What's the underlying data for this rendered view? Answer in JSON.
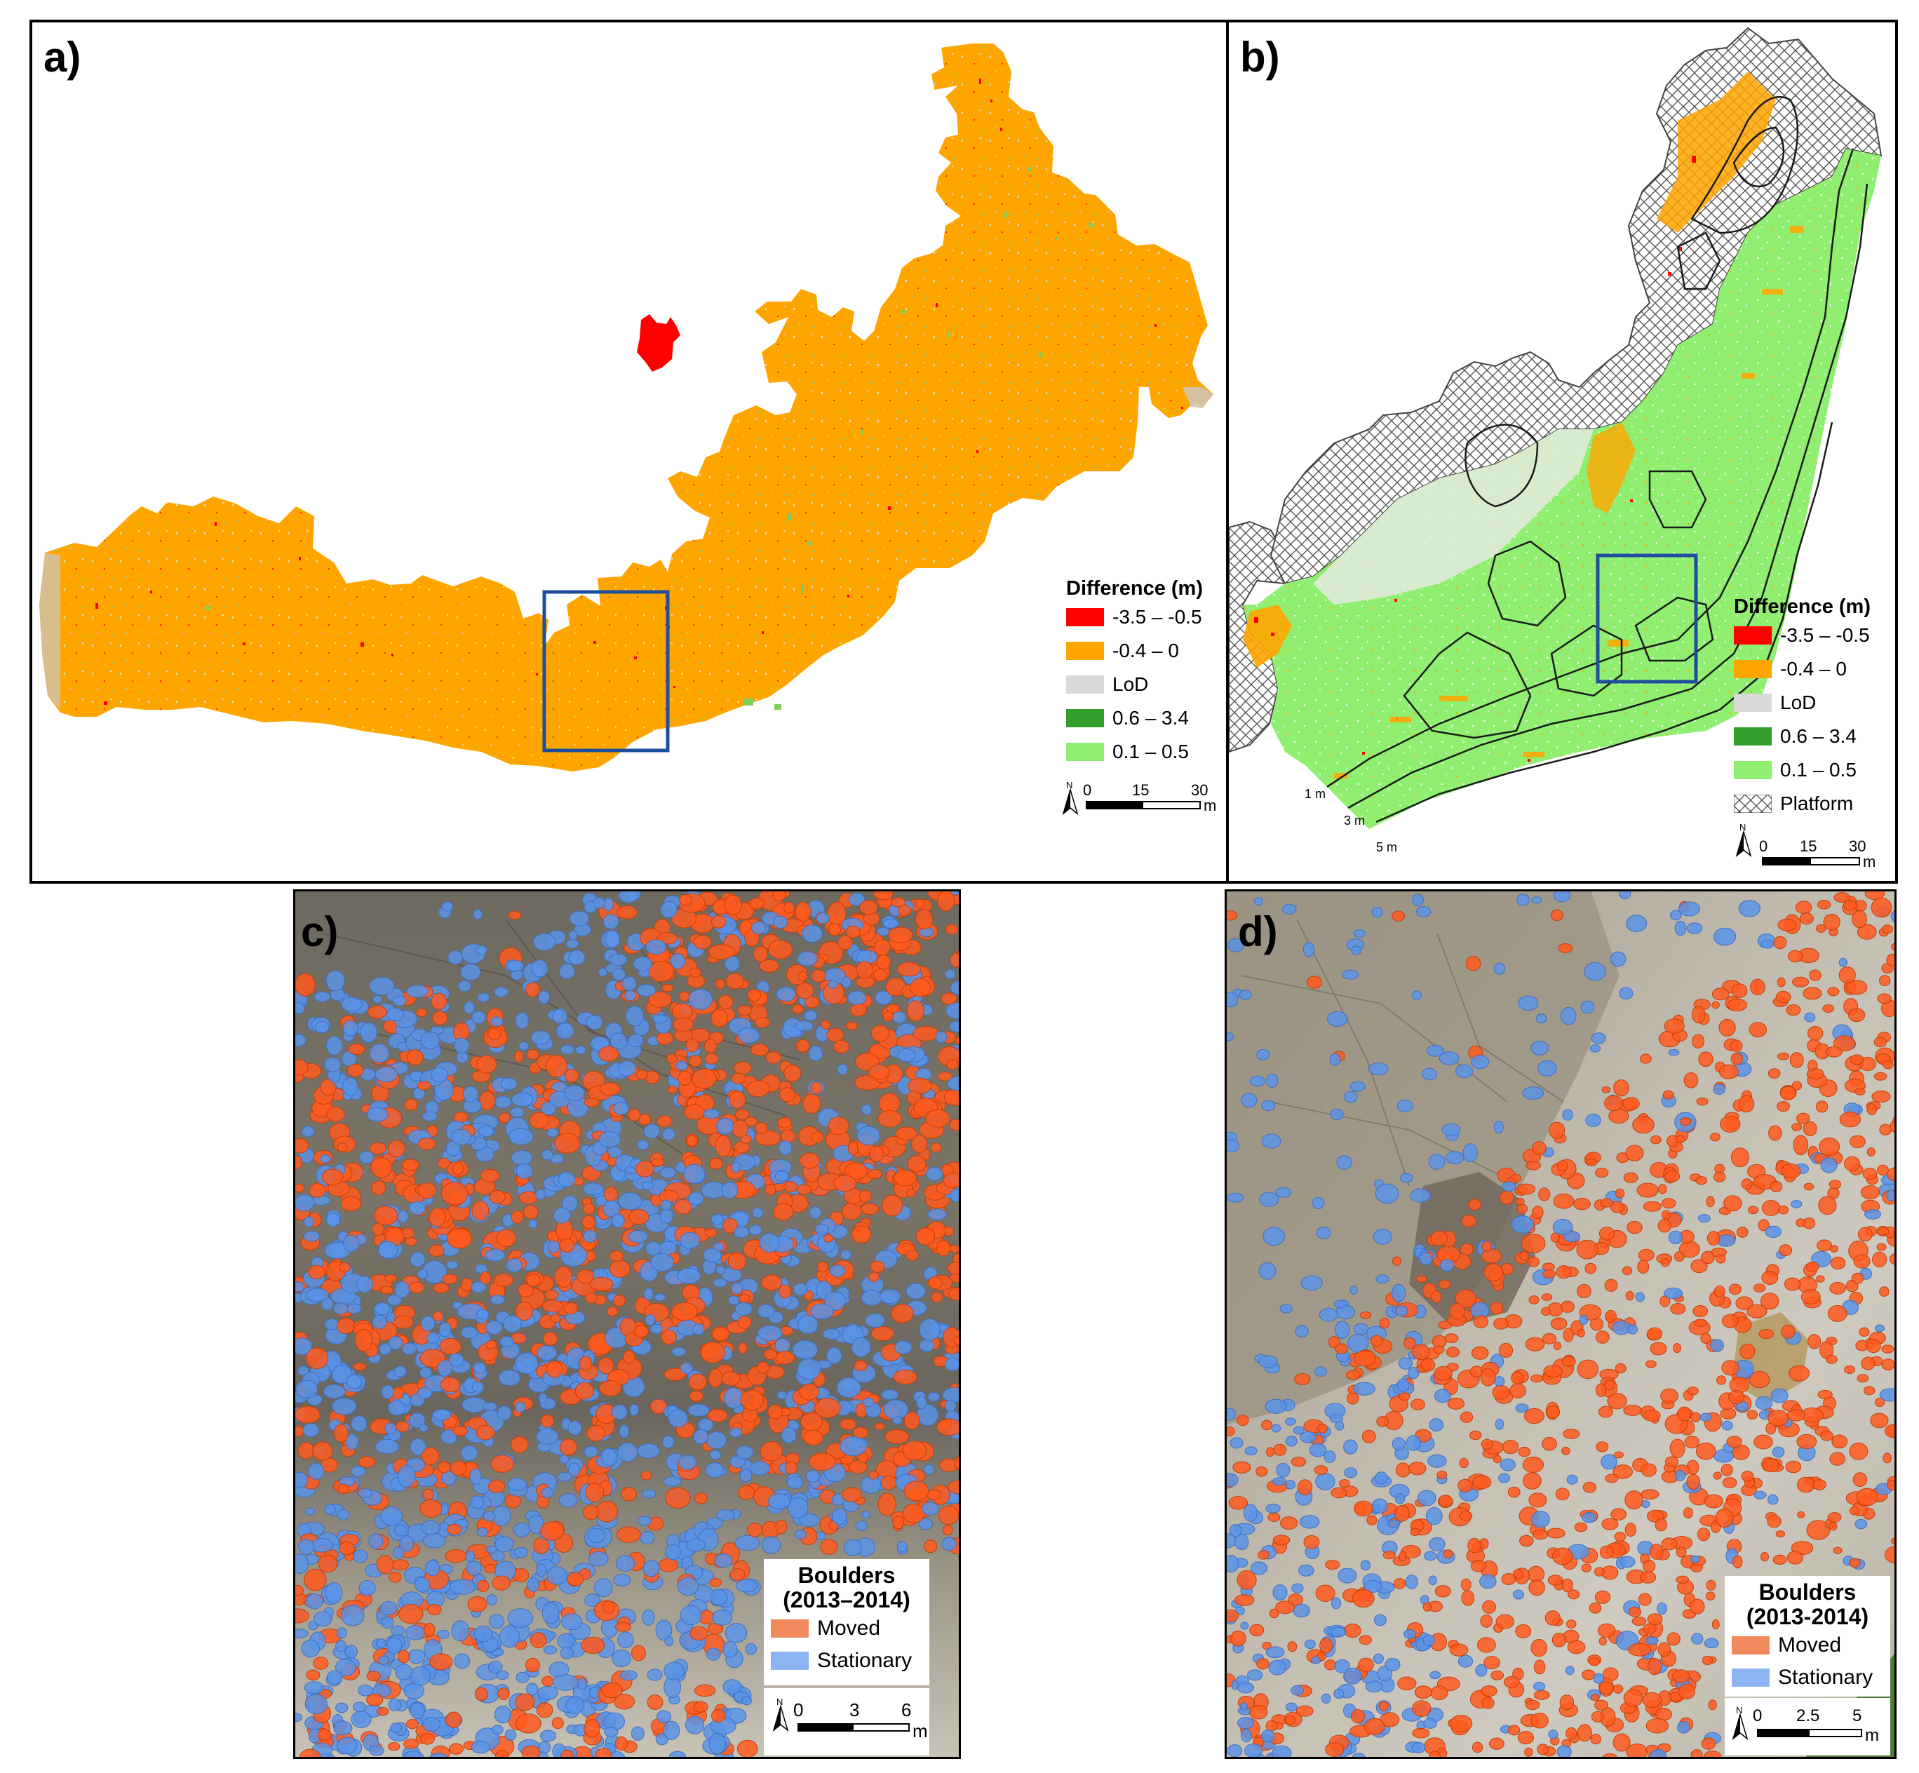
{
  "panels": {
    "a": {
      "label": "a)",
      "legend": {
        "title": "Difference (m)",
        "items": [
          {
            "label": "-3.5 – -0.5",
            "color": "#ff0000"
          },
          {
            "label": "-0.4 – 0",
            "color": "#ffa500"
          },
          {
            "label": "LoD",
            "color": "#d9d9d9"
          },
          {
            "label": "0.6 – 3.4",
            "color": "#33a02c"
          },
          {
            "label": "0.1 – 0.5",
            "color": "#90ee70"
          }
        ]
      },
      "scale": {
        "north": "N",
        "ticks": [
          "0",
          "15",
          "30"
        ],
        "unit": "m"
      }
    },
    "b": {
      "label": "b)",
      "legend": {
        "title": "Difference (m)",
        "items": [
          {
            "label": "-3.5 – -0.5",
            "color": "#ff0000"
          },
          {
            "label": "-0.4 – 0",
            "color": "#ffa500"
          },
          {
            "label": "LoD",
            "color": "#d9d9d9"
          },
          {
            "label": "0.6 – 3.4",
            "color": "#33a02c"
          },
          {
            "label": "0.1 – 0.5",
            "color": "#90ee70"
          },
          {
            "label": "Platform",
            "color": "#ffffff",
            "pattern": "crosshatch"
          }
        ]
      },
      "contours": [
        "1 m",
        "3 m",
        "5 m"
      ],
      "scale": {
        "north": "N",
        "ticks": [
          "0",
          "15",
          "30"
        ],
        "unit": "m"
      }
    },
    "c": {
      "label": "c)",
      "legend": {
        "title_line1": "Boulders",
        "title_line2": "(2013–2014)",
        "items": [
          {
            "label": "Moved",
            "color": "#f08a5d"
          },
          {
            "label": "Stationary",
            "color": "#8ab4f2"
          }
        ]
      },
      "scale": {
        "north": "N",
        "ticks": [
          "0",
          "3",
          "6"
        ],
        "unit": "m"
      }
    },
    "d": {
      "label": "d)",
      "legend": {
        "title_line1": "Boulders",
        "title_line2": "(2013-2014)",
        "items": [
          {
            "label": "Moved",
            "color": "#f08a5d"
          },
          {
            "label": "Stationary",
            "color": "#8ab4f2"
          }
        ]
      },
      "scale": {
        "north": "N",
        "ticks": [
          "0",
          "2.5",
          "5"
        ],
        "unit": "m"
      }
    }
  },
  "colors": {
    "erosion_major": "#ff0000",
    "erosion_minor": "#ffa500",
    "lod": "#d9d9d9",
    "accretion_major": "#33a02c",
    "accretion_minor": "#90ee70",
    "moved": "#ff5a1f",
    "stationary": "#5b93e6",
    "inset_box": "#1f4e9c"
  }
}
